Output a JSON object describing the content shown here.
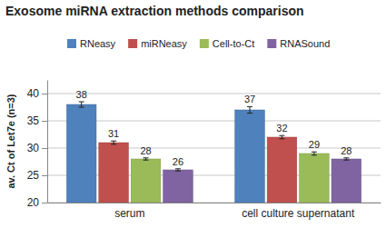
{
  "chart_data": {
    "type": "bar",
    "title": "Exosome miRNA extraction methods comparison",
    "y_label": "av. Ct of Let7e (n=3)",
    "categories": [
      "serum",
      "cell culture supernatant"
    ],
    "series": [
      {
        "name": "RNeasy",
        "color": "#4f81bd",
        "values": [
          38,
          37
        ],
        "errors": [
          0.5,
          0.6
        ]
      },
      {
        "name": "miRNeasy",
        "color": "#c0504d",
        "values": [
          31,
          32
        ],
        "errors": [
          0.3,
          0.3
        ]
      },
      {
        "name": "Cell-to-Ct",
        "color": "#9bbb59",
        "values": [
          28,
          29
        ],
        "errors": [
          0.2,
          0.3
        ]
      },
      {
        "name": "RNASound",
        "color": "#8064a2",
        "values": [
          26,
          28
        ],
        "errors": [
          0.2,
          0.2
        ]
      }
    ],
    "ylim": [
      20,
      42.5
    ],
    "yticks": [
      20,
      25,
      30,
      35,
      40
    ],
    "grid": true,
    "legend": "top",
    "data_labels": true
  }
}
